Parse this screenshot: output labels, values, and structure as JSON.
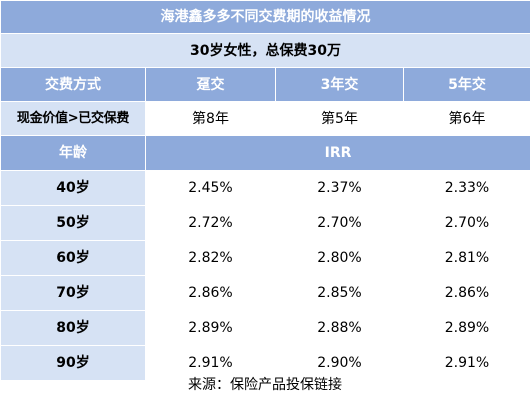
{
  "title": "海港鑫多多不同交费期的收益情况",
  "subtitle": "30岁女性，总保费30万",
  "header": {
    "label": "交费方式",
    "columns": [
      "趸交",
      "3年交",
      "5年交"
    ]
  },
  "cash_value_row": {
    "label": "现金价值>已交保费",
    "values": [
      "第8年",
      "第5年",
      "第6年"
    ]
  },
  "irr_header": {
    "label": "年龄",
    "value": "IRR"
  },
  "rows": [
    {
      "age": "40岁",
      "values": [
        "2.45%",
        "2.37%",
        "2.33%"
      ]
    },
    {
      "age": "50岁",
      "values": [
        "2.72%",
        "2.70%",
        "2.70%"
      ]
    },
    {
      "age": "60岁",
      "values": [
        "2.82%",
        "2.80%",
        "2.81%"
      ]
    },
    {
      "age": "70岁",
      "values": [
        "2.86%",
        "2.85%",
        "2.86%"
      ]
    },
    {
      "age": "80岁",
      "values": [
        "2.89%",
        "2.88%",
        "2.89%"
      ]
    },
    {
      "age": "90岁",
      "values": [
        "2.91%",
        "2.90%",
        "2.91%"
      ]
    }
  ],
  "source": "来源：保险产品投保链接"
}
